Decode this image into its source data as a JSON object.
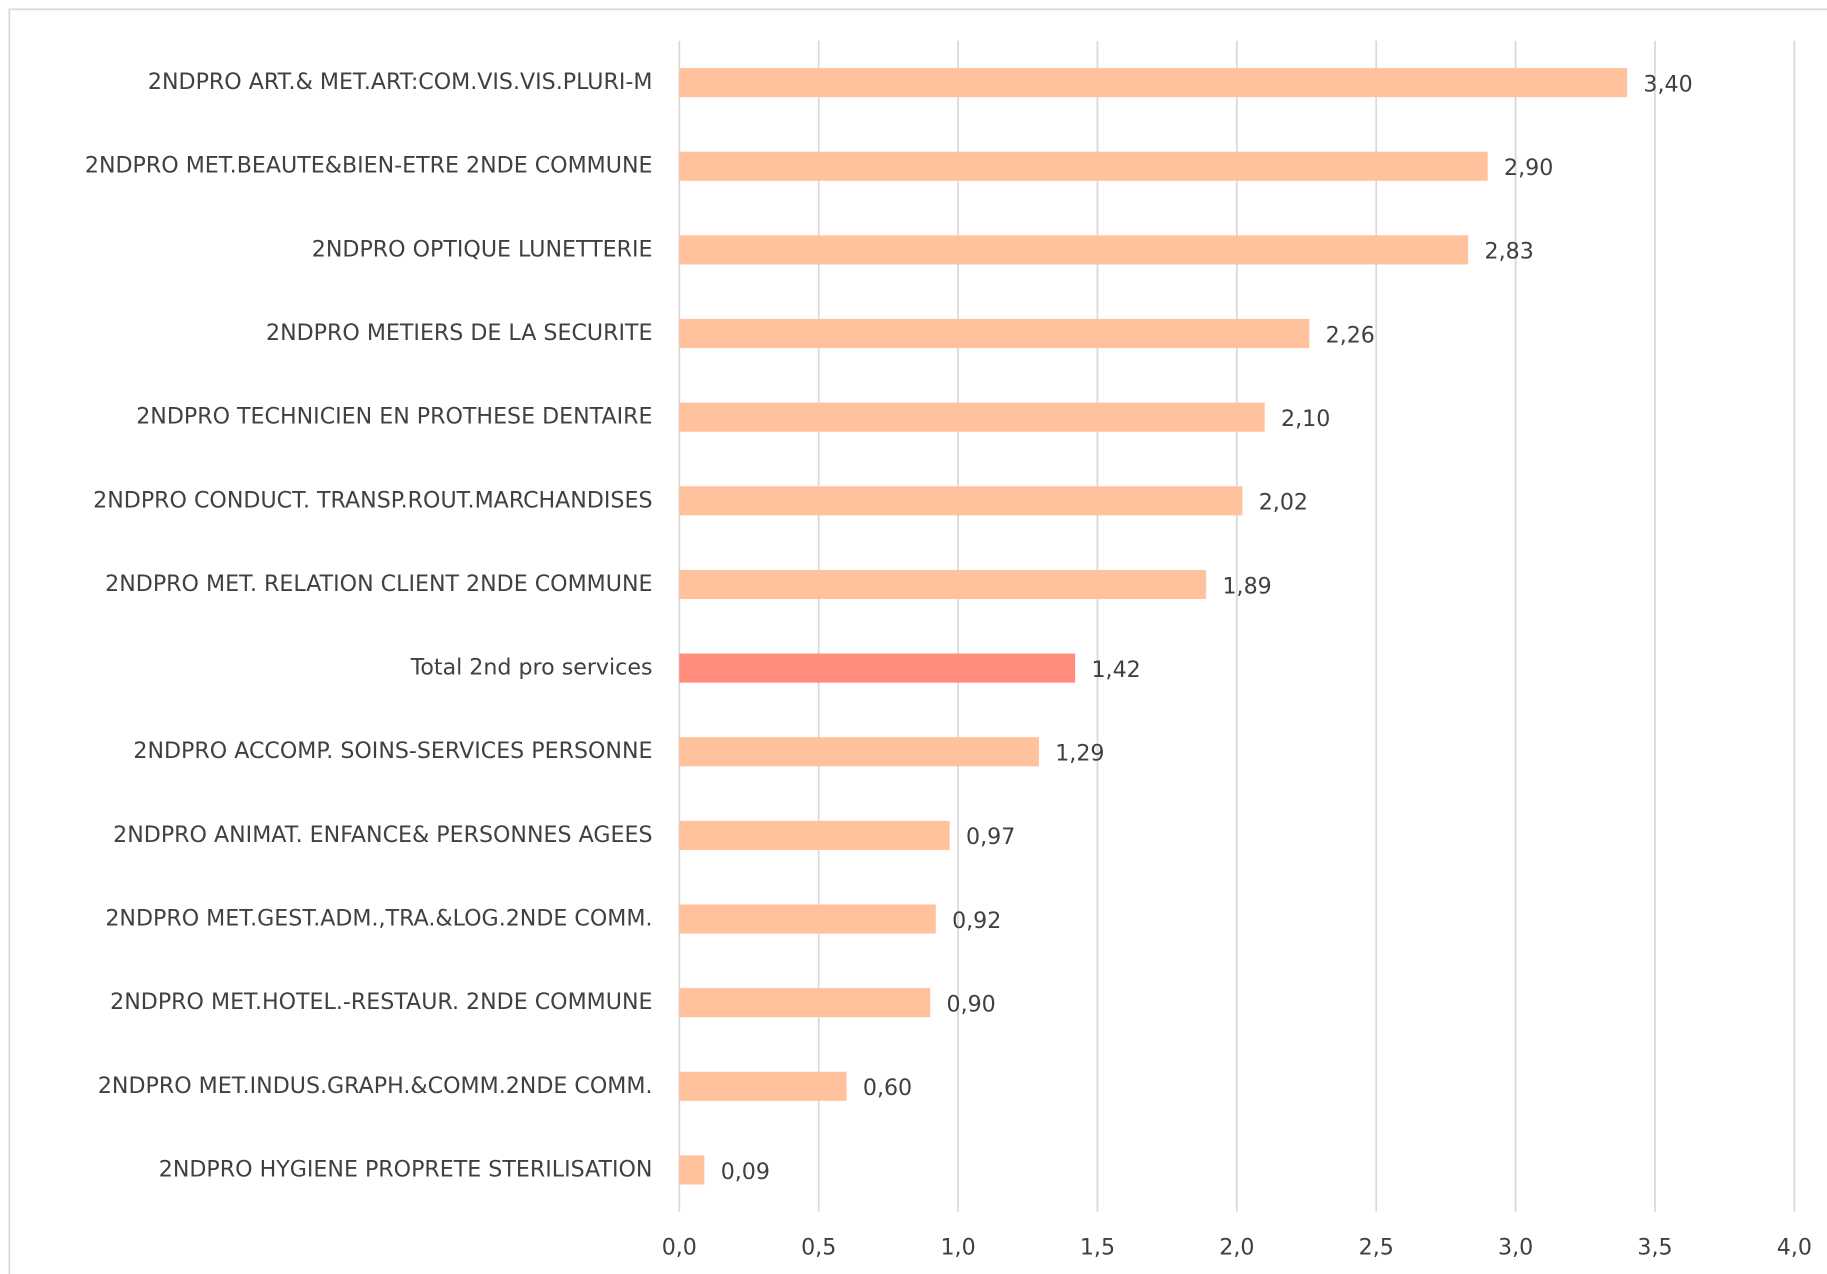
{
  "chart_data": {
    "type": "bar",
    "orientation": "horizontal",
    "categories": [
      "2NDPRO ART.& MET.ART:COM.VIS.VIS.PLURI-M",
      "2NDPRO MET.BEAUTE&BIEN-ETRE 2NDE COMMUNE",
      "2NDPRO OPTIQUE LUNETTERIE",
      "2NDPRO METIERS DE LA SECURITE",
      "2NDPRO TECHNICIEN EN PROTHESE DENTAIRE",
      "2NDPRO CONDUCT. TRANSP.ROUT.MARCHANDISES",
      "2NDPRO MET. RELATION CLIENT 2NDE COMMUNE",
      "Total 2nd pro services",
      "2NDPRO ACCOMP. SOINS-SERVICES PERSONNE",
      "2NDPRO ANIMAT. ENFANCE& PERSONNES AGEES",
      "2NDPRO MET.GEST.ADM.,TRA.&LOG.2NDE COMM.",
      "2NDPRO MET.HOTEL.-RESTAUR. 2NDE COMMUNE",
      "2NDPRO MET.INDUS.GRAPH.&COMM.2NDE COMM.",
      "2NDPRO HYGIENE PROPRETE STERILISATION"
    ],
    "values": [
      3.4,
      2.9,
      2.83,
      2.26,
      2.1,
      2.02,
      1.89,
      1.42,
      1.29,
      0.97,
      0.92,
      0.9,
      0.6,
      0.09
    ],
    "value_labels": [
      "3,40",
      "2,90",
      "2,83",
      "2,26",
      "2,10",
      "2,02",
      "1,89",
      "1,42",
      "1,29",
      "0,97",
      "0,92",
      "0,90",
      "0,60",
      "0,09"
    ],
    "colors": [
      "#ffc29c",
      "#ffc29c",
      "#ffc29c",
      "#ffc29c",
      "#ffc29c",
      "#ffc29c",
      "#ffc29c",
      "#ff8c7c",
      "#ffc29c",
      "#ffc29c",
      "#ffc29c",
      "#ffc29c",
      "#ffc29c",
      "#ffc29c"
    ],
    "xlim": [
      0,
      4
    ],
    "xticks": [
      {
        "value": 0,
        "label": "0,0"
      },
      {
        "value": 0.5,
        "label": "0,5"
      },
      {
        "value": 1,
        "label": "1,0"
      },
      {
        "value": 1.5,
        "label": "1,5"
      },
      {
        "value": 2,
        "label": "2,0"
      },
      {
        "value": 2.5,
        "label": "2,5"
      },
      {
        "value": 3,
        "label": "3,0"
      },
      {
        "value": 3.5,
        "label": "3,5"
      },
      {
        "value": 4,
        "label": "4,0"
      }
    ],
    "grid": true
  }
}
